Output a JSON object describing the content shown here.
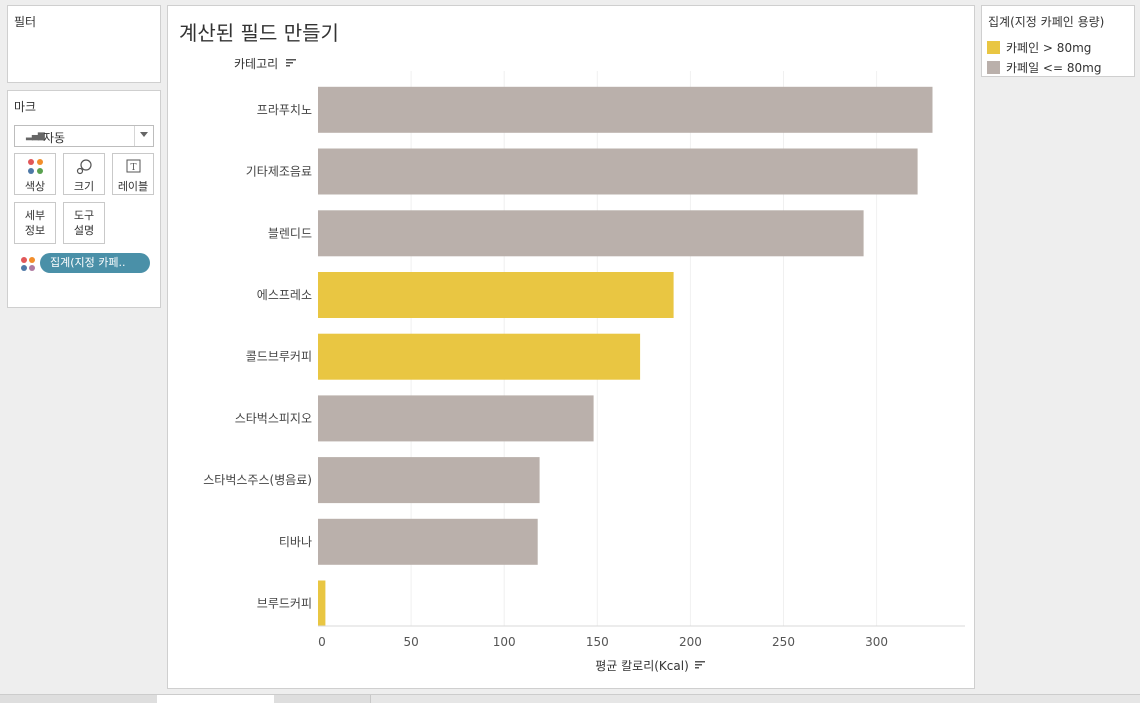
{
  "filters": {
    "title": "필터"
  },
  "marks": {
    "title": "마크",
    "mark_type": "자동",
    "buttons": {
      "color": "색상",
      "size": "크기",
      "label": "레이블",
      "detail_line1": "세부",
      "detail_line2": "정보",
      "tooltip_line1": "도구",
      "tooltip_line2": "설명"
    },
    "color_pill": "집계(지정 카페.."
  },
  "view": {
    "title": "계산된 필드 만들기"
  },
  "legend": {
    "title": "집계(지정 카페인 용량)",
    "items": [
      {
        "label": "카페인 > 80mg",
        "color": "#E9C642"
      },
      {
        "label": "카페일 <= 80mg",
        "color": "#BAB0AB"
      }
    ]
  },
  "chart_data": {
    "type": "bar",
    "orientation": "horizontal",
    "row_header": "카테고리",
    "categories": [
      "프라푸치노",
      "기타제조음료",
      "블렌디드",
      "에스프레소",
      "콜드브루커피",
      "스타벅스피지오",
      "스타벅스주스(병음료)",
      "티바나",
      "브루드커피"
    ],
    "values": [
      330,
      322,
      293,
      191,
      173,
      148,
      119,
      118,
      4
    ],
    "groups": [
      "카페일 <= 80mg",
      "카페일 <= 80mg",
      "카페일 <= 80mg",
      "카페인 > 80mg",
      "카페인 > 80mg",
      "카페일 <= 80mg",
      "카페일 <= 80mg",
      "카페일 <= 80mg",
      "카페인 > 80mg"
    ],
    "xlabel": "평균 칼로리(Kcal)",
    "xticks": [
      0,
      50,
      100,
      150,
      200,
      250,
      300
    ],
    "xlim": [
      0,
      345
    ],
    "grid": true,
    "legend_position": "right"
  }
}
